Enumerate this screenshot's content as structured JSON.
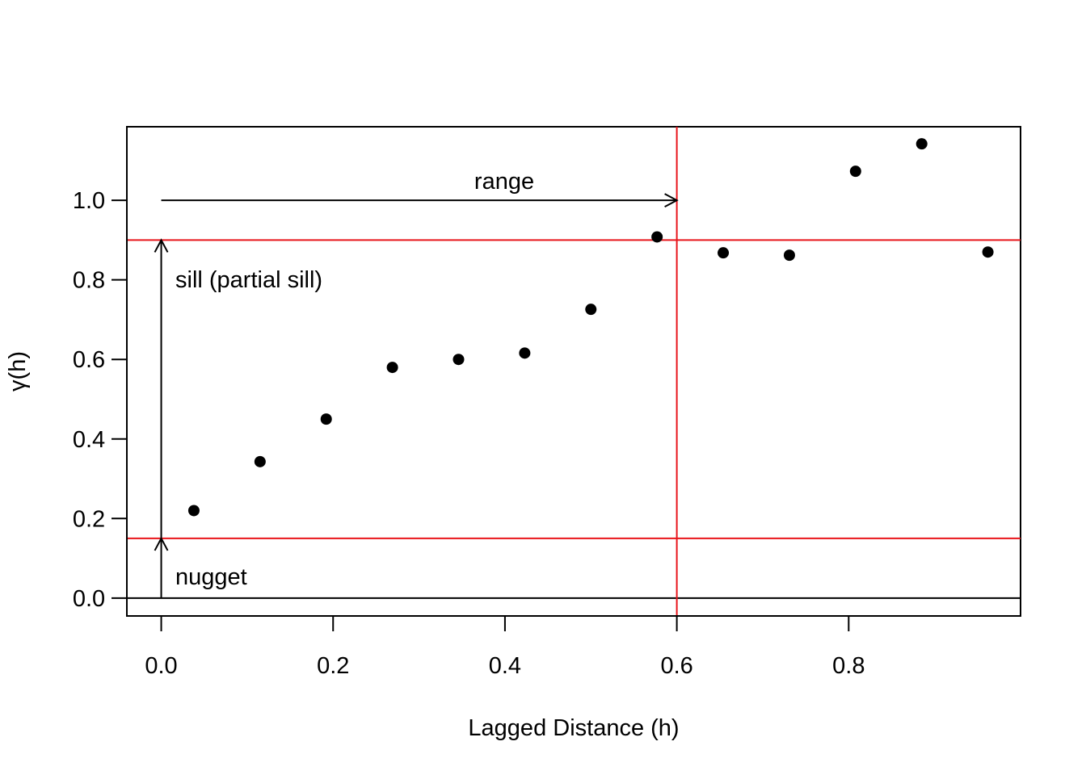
{
  "chart_data": {
    "type": "scatter",
    "title": "",
    "xlabel": "Lagged Distance (h)",
    "ylabel": "γ(h)",
    "xlim": [
      -0.04,
      1.0
    ],
    "ylim": [
      -0.045,
      1.185
    ],
    "xticks": [
      0.0,
      0.2,
      0.4,
      0.6,
      0.8
    ],
    "xtick_labels": [
      "0.0",
      "0.2",
      "0.4",
      "0.6",
      "0.8"
    ],
    "yticks": [
      0.0,
      0.2,
      0.4,
      0.6,
      0.8,
      1.0
    ],
    "ytick_labels": [
      "0.0",
      "0.2",
      "0.4",
      "0.6",
      "0.8",
      "1.0"
    ],
    "grid": false,
    "legend": "none",
    "series": [
      {
        "x": [
          0.038,
          0.115,
          0.192,
          0.269,
          0.346,
          0.423,
          0.5,
          0.577,
          0.654,
          0.731,
          0.808,
          0.885,
          0.962
        ],
        "y": [
          0.22,
          0.343,
          0.45,
          0.58,
          0.6,
          0.616,
          0.726,
          0.908,
          0.868,
          0.862,
          1.073,
          1.142,
          0.87
        ],
        "color": "#000000"
      }
    ],
    "reference_lines": {
      "color": "#e8141a",
      "nugget_y": 0.15,
      "sill_y": 0.9,
      "range_x": 0.6,
      "baseline_y": 0.0
    },
    "annotations": {
      "range": {
        "text": "range",
        "x_from": 0.0,
        "x_to": 0.6,
        "y": 1.0
      },
      "sill": {
        "text": "sill (partial sill)",
        "x": 0.0,
        "y_from": 0.15,
        "y_to": 0.9
      },
      "nugget": {
        "text": "nugget",
        "x": 0.0,
        "y_from": 0.0,
        "y_to": 0.15
      }
    }
  }
}
